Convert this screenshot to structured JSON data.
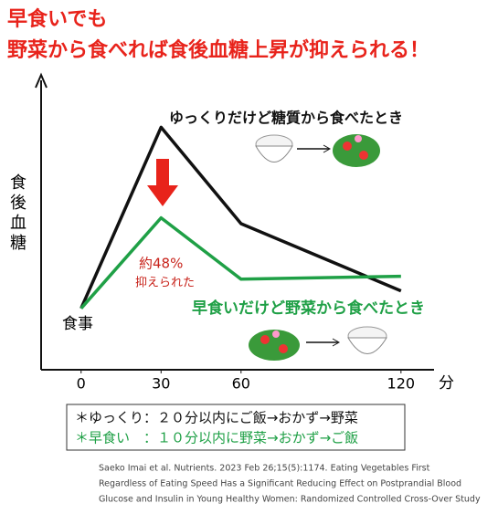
{
  "chart_data": {
    "type": "line",
    "title": [
      "早食いでも",
      "野菜から食べれば食後血糖上昇が抑えられる！"
    ],
    "ylabel": "食後血糖",
    "xunit": "分",
    "x": [
      0,
      30,
      60,
      120
    ],
    "xlim": [
      -15,
      130
    ],
    "xticks": [
      0,
      30,
      60,
      120
    ],
    "ylim": [
      0,
      100
    ],
    "series": [
      {
        "name": "ゆっくりだけど糖質から食べたとき",
        "color": "#111111",
        "values": [
          21,
          83,
          50,
          27
        ]
      },
      {
        "name": "早食いだけど野菜から食べたとき",
        "color": "#1fa046",
        "values": [
          21,
          52,
          31,
          32
        ]
      }
    ],
    "annotations": [
      "約48%",
      "抑えられた",
      "食事"
    ],
    "notes": [
      "＊ゆっくり：２０分以内にご飯→おかず→野菜",
      "＊早食い　：１０分以内に野菜→おかず→ご飯"
    ],
    "citation": [
      "Saeko Imai et al. Nutrients. 2023 Feb 26;15(5):1174. Eating Vegetables First",
      "Regardless of Eating Speed Has a Significant Reducing Effect on Postprandial Blood",
      "Glucose and Insulin in Young Healthy Women: Randomized Controlled Cross-Over Study"
    ]
  }
}
